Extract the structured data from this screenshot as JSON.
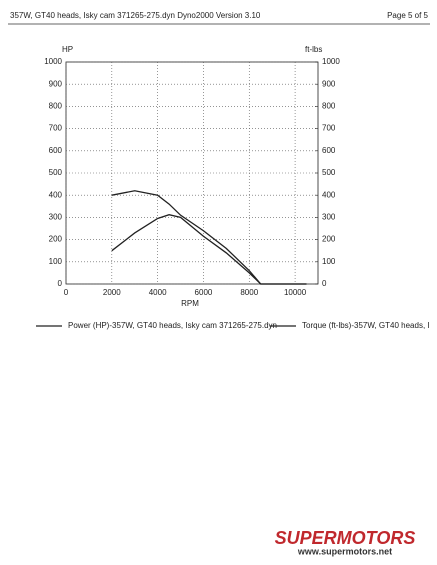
{
  "header": {
    "left": "357W, GT40 heads, Isky cam 371265-275.dyn  Dyno2000  Version 3.10",
    "right": "Page 5 of 5"
  },
  "chart_data": {
    "type": "line",
    "ylabel": "HP",
    "y2label": "ft-lbs",
    "xlabel": "RPM",
    "x": [
      2000,
      3000,
      4000,
      4500,
      5000,
      6000,
      7000,
      8000,
      8500,
      10500
    ],
    "xlim": [
      0,
      11000
    ],
    "xticks": [
      0,
      2000,
      4000,
      6000,
      8000,
      10000
    ],
    "ylim": [
      0,
      1000
    ],
    "yticks": [
      0,
      100,
      200,
      300,
      400,
      500,
      600,
      700,
      800,
      900,
      1000
    ],
    "y2lim": [
      0,
      1000
    ],
    "y2ticks": [
      0,
      100,
      200,
      300,
      400,
      500,
      600,
      700,
      800,
      900,
      1000
    ],
    "grid": true,
    "series": [
      {
        "name": "Power (HP)-357W, GT40 heads, Isky cam 371265-275.dyn",
        "color": "#222222",
        "values": [
          150,
          230,
          295,
          312,
          300,
          215,
          140,
          50,
          0,
          0
        ]
      },
      {
        "name": "Torque (ft-lbs)-357W, GT40 heads, I",
        "color": "#222222",
        "axis": "y2",
        "values": [
          400,
          420,
          400,
          360,
          310,
          240,
          160,
          60,
          0,
          0
        ]
      }
    ]
  },
  "watermark": {
    "brand": "SUPERMOTORS",
    "url": "www.supermotors.net"
  }
}
